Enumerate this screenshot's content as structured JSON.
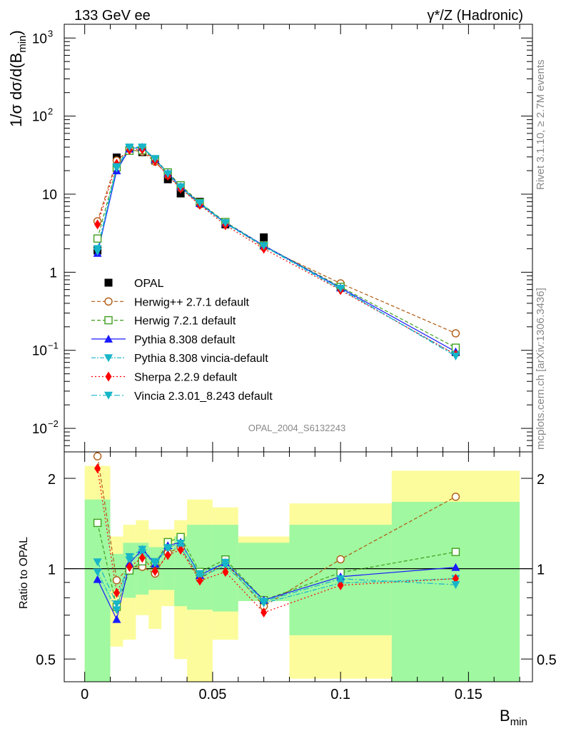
{
  "header": {
    "left": "133 GeV ee",
    "right": "γ*/Z (Hadronic)"
  },
  "side": {
    "rivet": "Rivet 3.1.10, ≥ 2.7M events",
    "mcplots": "mcplots.cern.ch [arXiv:1306.3436]"
  },
  "analysis_id": "OPAL_2004_S6132243",
  "colors": {
    "data": "#000000",
    "herwigpp": "#b05a10",
    "herwig7": "#3f9f1f",
    "pythia": "#1a1aff",
    "pythia_vincia": "#17b5c8",
    "sherpa": "#ff0000",
    "vincia": "#17b5c8",
    "band_inner": "#a0f8a0",
    "band_outer": "#fcfc9c"
  },
  "chart_data": [
    {
      "type": "line",
      "yscale": "log",
      "ylabel": "1/σ dσ/d(B_min)",
      "ylim": [
        0.005,
        1500
      ],
      "xlim": [
        -0.008,
        0.175
      ],
      "yticks": [
        "10^-2",
        "10^-1",
        "1",
        "10",
        "10^2",
        "10^3"
      ],
      "x": [
        0.005,
        0.0125,
        0.0175,
        0.0225,
        0.0275,
        0.0325,
        0.0375,
        0.045,
        0.055,
        0.07,
        0.1,
        0.145
      ],
      "data": {
        "name": "OPAL",
        "values": [
          1.9,
          29.5,
          36.5,
          34.5,
          27.0,
          15.5,
          10.2,
          8.0,
          4.1,
          2.8,
          0.67,
          0.095
        ],
        "band_inner_rel": [
          [
            0.12,
            1.7
          ],
          [
            0.85,
            1.12
          ],
          [
            0.8,
            1.22
          ],
          [
            0.82,
            1.22
          ],
          [
            0.85,
            1.18
          ],
          [
            0.85,
            1.18
          ],
          [
            0.75,
            1.28
          ],
          [
            0.73,
            1.4
          ],
          [
            0.72,
            1.4
          ],
          [
            0.78,
            1.22
          ],
          [
            0.6,
            1.4
          ],
          [
            0.36,
            1.67
          ]
        ],
        "band_outer_rel": [
          [
            0.12,
            2.2
          ],
          [
            0.55,
            1.28
          ],
          [
            0.58,
            1.4
          ],
          [
            0.7,
            1.45
          ],
          [
            0.63,
            1.35
          ],
          [
            0.75,
            1.35
          ],
          [
            0.5,
            1.45
          ],
          [
            0.32,
            1.7
          ],
          [
            0.58,
            1.6
          ],
          [
            0.78,
            1.28
          ],
          [
            0.43,
            1.65
          ],
          [
            0.36,
            2.12
          ]
        ]
      },
      "series": [
        {
          "name": "Herwig++ 2.7.1 default",
          "marker": "open-circle",
          "dash": "5,3",
          "color": "#b05a10",
          "values": [
            4.5,
            27.0,
            37.0,
            35.0,
            26.0,
            17.5,
            12.0,
            7.4,
            4.3,
            2.1,
            0.72,
            0.165
          ]
        },
        {
          "name": "Herwig 7.2.1 default",
          "marker": "open-square",
          "dash": "5,3",
          "color": "#3f9f1f",
          "values": [
            2.7,
            22.0,
            36.0,
            36.5,
            28.0,
            19.0,
            13.0,
            7.8,
            4.4,
            2.2,
            0.65,
            0.108
          ]
        },
        {
          "name": "Pythia 8.308 default",
          "marker": "triangle-up",
          "dash": "",
          "color": "#1a1aff",
          "values": [
            1.75,
            20.0,
            38.0,
            40.0,
            28.0,
            18.5,
            12.5,
            7.6,
            4.3,
            2.2,
            0.63,
            0.096
          ]
        },
        {
          "name": "Pythia 8.308 vincia-default",
          "marker": "triangle-down",
          "dash": "6,2,2,2",
          "color": "#17b5c8",
          "values": [
            1.85,
            21.5,
            39.0,
            39.0,
            28.0,
            18.0,
            12.0,
            7.5,
            4.2,
            2.15,
            0.6,
            0.088
          ]
        },
        {
          "name": "Sherpa 2.2.9 default",
          "marker": "diamond",
          "dash": "2,3",
          "color": "#ff0000",
          "values": [
            4.1,
            24.5,
            37.0,
            37.5,
            26.5,
            17.2,
            11.8,
            7.3,
            4.0,
            2.0,
            0.59,
            0.088
          ]
        },
        {
          "name": "Vincia 2.3.01_8.243 default",
          "marker": "triangle-down",
          "dash": "8,3,2,3",
          "color": "#17b5c8",
          "values": [
            2.0,
            22.5,
            40.0,
            40.0,
            28.5,
            18.2,
            12.4,
            7.7,
            4.3,
            2.18,
            0.62,
            0.084
          ]
        }
      ]
    },
    {
      "type": "line",
      "yscale": "log",
      "ylabel": "Ratio to OPAL",
      "xlabel": "B_min",
      "ylim": [
        0.42,
        2.45
      ],
      "yticks": [
        "0.5",
        "1",
        "2"
      ],
      "xticks": [
        "0",
        "0.05",
        "0.1",
        "0.15"
      ]
    }
  ]
}
